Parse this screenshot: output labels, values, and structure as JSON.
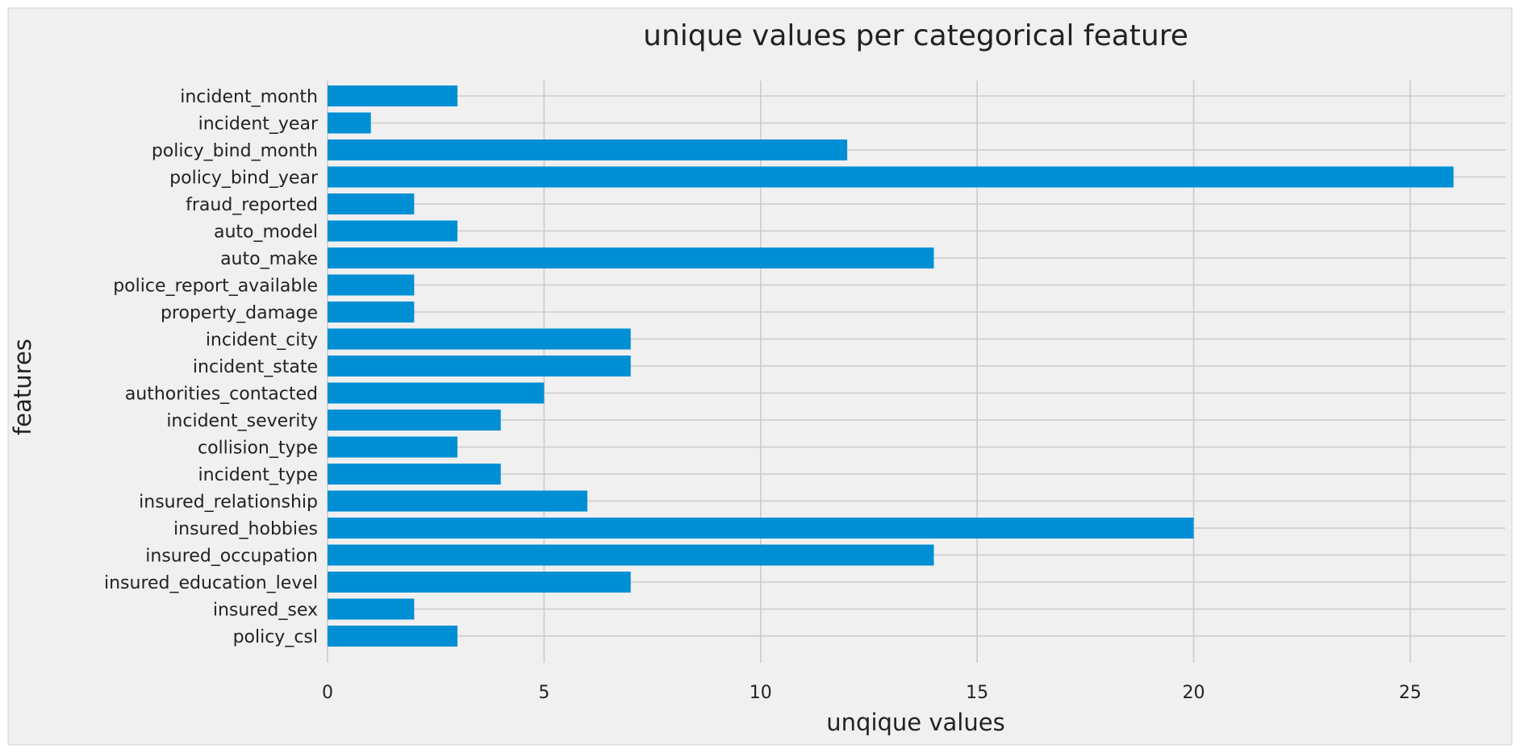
{
  "chart_data": {
    "type": "bar",
    "orientation": "horizontal",
    "title": "unique values per categorical feature",
    "xlabel": "unqique values",
    "ylabel": "features",
    "xlim": [
      0,
      27.2
    ],
    "xticks": [
      0,
      5,
      10,
      15,
      20,
      25
    ],
    "grid": true,
    "style": "fivethirtyeight",
    "colors": {
      "bar": "#008fd5",
      "background": "#f0f0f0",
      "grid": "#cbcbcb",
      "text": "#222222",
      "border": "#d0d0d0"
    },
    "categories": [
      "policy_csl",
      "insured_sex",
      "insured_education_level",
      "insured_occupation",
      "insured_hobbies",
      "insured_relationship",
      "incident_type",
      "collision_type",
      "incident_severity",
      "authorities_contacted",
      "incident_state",
      "incident_city",
      "property_damage",
      "police_report_available",
      "auto_make",
      "auto_model",
      "fraud_reported",
      "policy_bind_year",
      "policy_bind_month",
      "incident_year",
      "incident_month"
    ],
    "values": [
      3,
      2,
      7,
      14,
      20,
      6,
      4,
      3,
      4,
      5,
      7,
      7,
      2,
      2,
      14,
      3,
      2,
      26,
      12,
      1,
      3
    ]
  }
}
